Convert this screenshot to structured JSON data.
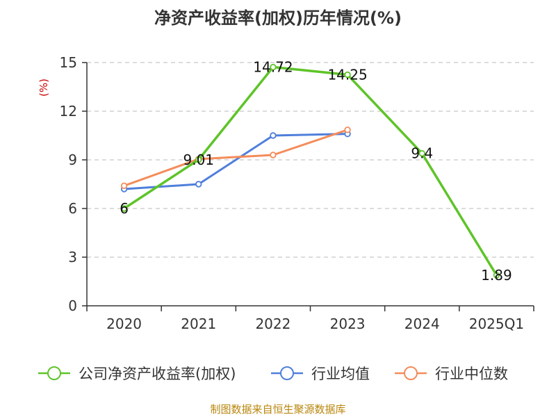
{
  "chart_data": {
    "type": "line",
    "title": "净资产收益率(加权)历年情况(%)",
    "unit_label": "(%)",
    "categories": [
      "2020",
      "2021",
      "2022",
      "2023",
      "2024",
      "2025Q1"
    ],
    "yticks": [
      0,
      3,
      6,
      9,
      12,
      15
    ],
    "ylim": [
      0,
      15
    ],
    "grid": true,
    "legend_position": "bottom",
    "series": [
      {
        "name": "公司净资产收益率(加权)",
        "color": "#5ec428",
        "values": [
          6,
          9.01,
          14.72,
          14.25,
          9.4,
          1.89
        ],
        "labels": [
          "6",
          "9.01",
          "14.72",
          "14.25",
          "9.4",
          "1.89"
        ]
      },
      {
        "name": "行业均值",
        "color": "#4f7fdb",
        "values": [
          7.2,
          7.5,
          10.5,
          10.6,
          null,
          null
        ]
      },
      {
        "name": "行业中位数",
        "color": "#f48c5a",
        "values": [
          7.4,
          9.05,
          9.3,
          10.85,
          null,
          null
        ]
      }
    ]
  },
  "source": "制图数据来自恒生聚源数据库"
}
